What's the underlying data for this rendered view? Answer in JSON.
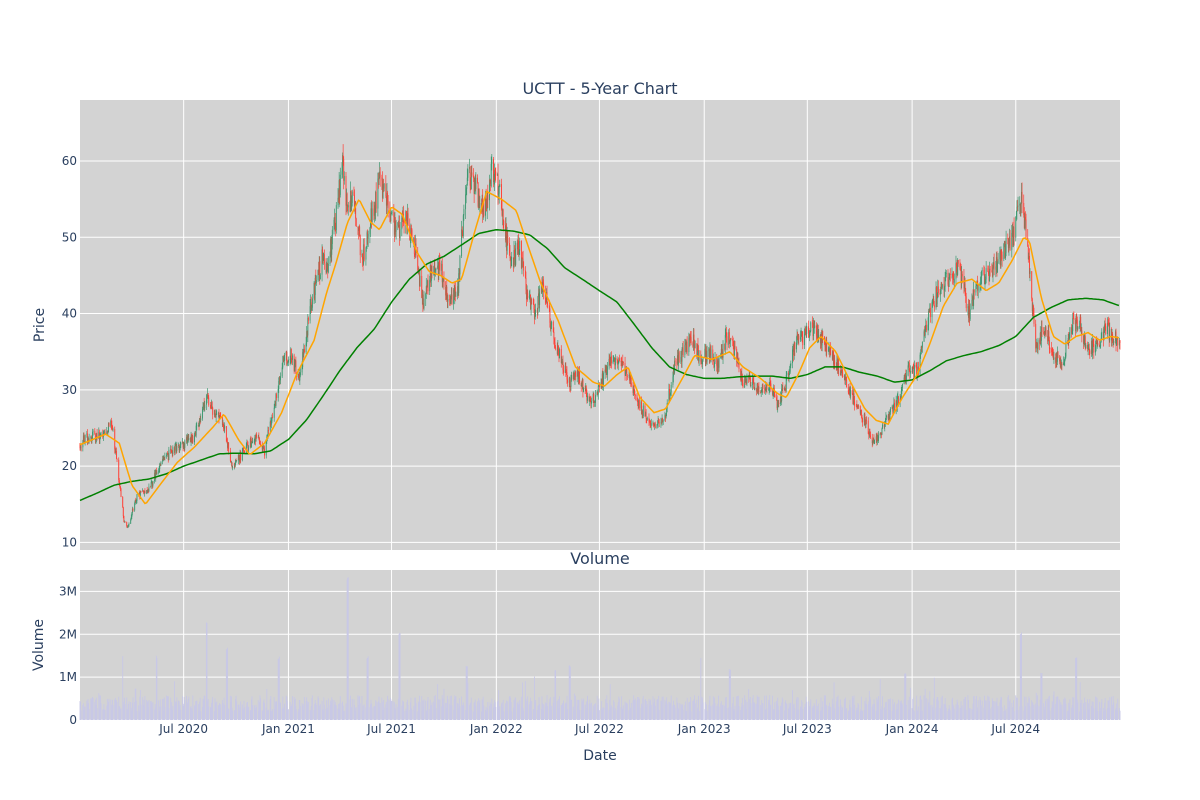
{
  "chart_data": {
    "type": "candlestick",
    "title": "UCTT - 5-Year Chart",
    "volume_title": "Volume",
    "xlabel": "Date",
    "ylabel_price": "Price",
    "ylabel_volume": "Volume",
    "x_range": [
      "2020-01-01",
      "2024-12-31"
    ],
    "x_ticks": [
      {
        "date": "2020-07-01",
        "label": "Jul 2020"
      },
      {
        "date": "2021-01-01",
        "label": "Jan 2021"
      },
      {
        "date": "2021-07-01",
        "label": "Jul 2021"
      },
      {
        "date": "2022-01-01",
        "label": "Jan 2022"
      },
      {
        "date": "2022-07-01",
        "label": "Jul 2022"
      },
      {
        "date": "2023-01-01",
        "label": "Jan 2023"
      },
      {
        "date": "2023-07-01",
        "label": "Jul 2023"
      },
      {
        "date": "2024-01-01",
        "label": "Jan 2024"
      },
      {
        "date": "2024-07-01",
        "label": "Jul 2024"
      }
    ],
    "price_ylim": [
      9,
      68
    ],
    "price_ticks": [
      {
        "v": 10,
        "label": "10"
      },
      {
        "v": 20,
        "label": "20"
      },
      {
        "v": 30,
        "label": "30"
      },
      {
        "v": 40,
        "label": "40"
      },
      {
        "v": 50,
        "label": "50"
      },
      {
        "v": 60,
        "label": "60"
      }
    ],
    "volume_ylim": [
      0,
      3500000
    ],
    "volume_ticks": [
      {
        "v": 0,
        "label": "0"
      },
      {
        "v": 1000000,
        "label": "1M"
      },
      {
        "v": 2000000,
        "label": "2M"
      },
      {
        "v": 3000000,
        "label": "3M"
      }
    ],
    "grid": true,
    "colors": {
      "up": "#3d9970",
      "down": "#ff4136",
      "ma_short": "#ffa500",
      "ma_long": "#008000",
      "volume": "#c8c8e6",
      "plot_bg": "#d3d3d3",
      "text": "#2a3f5f"
    },
    "close_path": [
      [
        "2020-01-01",
        23
      ],
      [
        "2020-01-20",
        24
      ],
      [
        "2020-02-10",
        24
      ],
      [
        "2020-02-25",
        26
      ],
      [
        "2020-03-05",
        21
      ],
      [
        "2020-03-18",
        13
      ],
      [
        "2020-03-25",
        12
      ],
      [
        "2020-04-10",
        16
      ],
      [
        "2020-05-01",
        17
      ],
      [
        "2020-05-20",
        20
      ],
      [
        "2020-06-10",
        22
      ],
      [
        "2020-07-01",
        23
      ],
      [
        "2020-07-20",
        24
      ],
      [
        "2020-08-10",
        29
      ],
      [
        "2020-08-25",
        27
      ],
      [
        "2020-09-10",
        25
      ],
      [
        "2020-09-25",
        20
      ],
      [
        "2020-10-15",
        22
      ],
      [
        "2020-11-05",
        24
      ],
      [
        "2020-11-20",
        22
      ],
      [
        "2020-12-05",
        27
      ],
      [
        "2020-12-20",
        33
      ],
      [
        "2021-01-05",
        35
      ],
      [
        "2021-01-20",
        31
      ],
      [
        "2021-02-05",
        39
      ],
      [
        "2021-02-15",
        43
      ],
      [
        "2021-03-01",
        47
      ],
      [
        "2021-03-10",
        46
      ],
      [
        "2021-03-25",
        52
      ],
      [
        "2021-04-05",
        60
      ],
      [
        "2021-04-15",
        54
      ],
      [
        "2021-04-25",
        56
      ],
      [
        "2021-05-10",
        47
      ],
      [
        "2021-05-25",
        52
      ],
      [
        "2021-06-10",
        57
      ],
      [
        "2021-06-25",
        55
      ],
      [
        "2021-07-10",
        50
      ],
      [
        "2021-07-25",
        53
      ],
      [
        "2021-08-10",
        49
      ],
      [
        "2021-08-25",
        41
      ],
      [
        "2021-09-10",
        46
      ],
      [
        "2021-09-25",
        46
      ],
      [
        "2021-10-10",
        42
      ],
      [
        "2021-10-25",
        43
      ],
      [
        "2021-11-10",
        58
      ],
      [
        "2021-11-25",
        57
      ],
      [
        "2021-12-10",
        53
      ],
      [
        "2021-12-25",
        59
      ],
      [
        "2022-01-10",
        55
      ],
      [
        "2022-01-25",
        46
      ],
      [
        "2022-02-10",
        49
      ],
      [
        "2022-02-25",
        42
      ],
      [
        "2022-03-10",
        40
      ],
      [
        "2022-03-25",
        44
      ],
      [
        "2022-04-10",
        37
      ],
      [
        "2022-04-25",
        34
      ],
      [
        "2022-05-10",
        31
      ],
      [
        "2022-05-25",
        32
      ],
      [
        "2022-06-10",
        29
      ],
      [
        "2022-06-25",
        29
      ],
      [
        "2022-07-10",
        32
      ],
      [
        "2022-07-25",
        34
      ],
      [
        "2022-08-10",
        33
      ],
      [
        "2022-08-25",
        31
      ],
      [
        "2022-09-10",
        28
      ],
      [
        "2022-09-25",
        26
      ],
      [
        "2022-10-10",
        25
      ],
      [
        "2022-10-25",
        27
      ],
      [
        "2022-11-10",
        33
      ],
      [
        "2022-11-25",
        35
      ],
      [
        "2022-12-10",
        37
      ],
      [
        "2022-12-25",
        34
      ],
      [
        "2023-01-10",
        35
      ],
      [
        "2023-01-25",
        33
      ],
      [
        "2023-02-10",
        37
      ],
      [
        "2023-02-25",
        35
      ],
      [
        "2023-03-10",
        31
      ],
      [
        "2023-03-25",
        31
      ],
      [
        "2023-04-10",
        30
      ],
      [
        "2023-04-25",
        31
      ],
      [
        "2023-05-10",
        28
      ],
      [
        "2023-05-25",
        31
      ],
      [
        "2023-06-10",
        36
      ],
      [
        "2023-06-25",
        37
      ],
      [
        "2023-07-10",
        38
      ],
      [
        "2023-07-25",
        37
      ],
      [
        "2023-08-10",
        35
      ],
      [
        "2023-08-25",
        33
      ],
      [
        "2023-09-10",
        30
      ],
      [
        "2023-09-25",
        28
      ],
      [
        "2023-10-10",
        26
      ],
      [
        "2023-10-25",
        23
      ],
      [
        "2023-11-10",
        25
      ],
      [
        "2023-11-25",
        27
      ],
      [
        "2023-12-10",
        29
      ],
      [
        "2023-12-25",
        33
      ],
      [
        "2024-01-10",
        32
      ],
      [
        "2024-01-25",
        38
      ],
      [
        "2024-02-10",
        42
      ],
      [
        "2024-02-25",
        44
      ],
      [
        "2024-03-10",
        45
      ],
      [
        "2024-03-25",
        46
      ],
      [
        "2024-04-10",
        40
      ],
      [
        "2024-04-25",
        44
      ],
      [
        "2024-05-10",
        45
      ],
      [
        "2024-05-25",
        46
      ],
      [
        "2024-06-10",
        48
      ],
      [
        "2024-06-25",
        50
      ],
      [
        "2024-07-10",
        55
      ],
      [
        "2024-07-20",
        50
      ],
      [
        "2024-08-05",
        36
      ],
      [
        "2024-08-20",
        38
      ],
      [
        "2024-09-05",
        35
      ],
      [
        "2024-09-20",
        33
      ],
      [
        "2024-10-05",
        38
      ],
      [
        "2024-10-20",
        39
      ],
      [
        "2024-11-05",
        35
      ],
      [
        "2024-11-20",
        36
      ],
      [
        "2024-12-05",
        38
      ],
      [
        "2024-12-20",
        37
      ],
      [
        "2024-12-31",
        36
      ]
    ],
    "ma_short_path": [
      [
        "2020-01-01",
        22.8
      ],
      [
        "2020-02-15",
        24.2
      ],
      [
        "2020-03-10",
        23.0
      ],
      [
        "2020-04-01",
        17.5
      ],
      [
        "2020-04-25",
        15.0
      ],
      [
        "2020-05-20",
        17.5
      ],
      [
        "2020-06-20",
        20.5
      ],
      [
        "2020-07-20",
        22.5
      ],
      [
        "2020-08-20",
        25.0
      ],
      [
        "2020-09-10",
        26.8
      ],
      [
        "2020-10-05",
        23.5
      ],
      [
        "2020-10-25",
        21.5
      ],
      [
        "2020-11-20",
        23.0
      ],
      [
        "2020-12-20",
        27.0
      ],
      [
        "2021-01-15",
        32.0
      ],
      [
        "2021-02-15",
        36.5
      ],
      [
        "2021-03-10",
        43.0
      ],
      [
        "2021-03-25",
        46.5
      ],
      [
        "2021-04-15",
        52.0
      ],
      [
        "2021-05-05",
        55.0
      ],
      [
        "2021-05-25",
        52.0
      ],
      [
        "2021-06-10",
        51.0
      ],
      [
        "2021-07-01",
        54.0
      ],
      [
        "2021-07-20",
        53.0
      ],
      [
        "2021-08-15",
        48.0
      ],
      [
        "2021-09-05",
        45.5
      ],
      [
        "2021-09-25",
        45.0
      ],
      [
        "2021-10-15",
        44.0
      ],
      [
        "2021-11-01",
        44.5
      ],
      [
        "2021-11-25",
        51.0
      ],
      [
        "2021-12-15",
        56.0
      ],
      [
        "2022-01-10",
        55.0
      ],
      [
        "2022-02-05",
        53.5
      ],
      [
        "2022-02-25",
        49.0
      ],
      [
        "2022-03-20",
        44.0
      ],
      [
        "2022-04-20",
        39.0
      ],
      [
        "2022-05-20",
        33.0
      ],
      [
        "2022-06-20",
        31.0
      ],
      [
        "2022-07-10",
        30.5
      ],
      [
        "2022-08-01",
        32.0
      ],
      [
        "2022-08-20",
        33.0
      ],
      [
        "2022-09-10",
        29.0
      ],
      [
        "2022-10-05",
        27.0
      ],
      [
        "2022-10-25",
        27.5
      ],
      [
        "2022-11-20",
        31.0
      ],
      [
        "2022-12-15",
        34.5
      ],
      [
        "2023-01-15",
        34.0
      ],
      [
        "2023-02-15",
        35.0
      ],
      [
        "2023-03-10",
        33.0
      ],
      [
        "2023-04-10",
        31.5
      ],
      [
        "2023-05-10",
        29.5
      ],
      [
        "2023-05-25",
        29.0
      ],
      [
        "2023-06-15",
        32.0
      ],
      [
        "2023-07-05",
        35.5
      ],
      [
        "2023-07-25",
        37.0
      ],
      [
        "2023-08-20",
        35.0
      ],
      [
        "2023-09-15",
        31.0
      ],
      [
        "2023-10-10",
        27.5
      ],
      [
        "2023-10-30",
        26.0
      ],
      [
        "2023-11-20",
        25.5
      ],
      [
        "2023-12-15",
        29.0
      ],
      [
        "2024-01-10",
        32.0
      ],
      [
        "2024-02-01",
        36.0
      ],
      [
        "2024-02-25",
        41.0
      ],
      [
        "2024-03-20",
        44.0
      ],
      [
        "2024-04-15",
        44.5
      ],
      [
        "2024-05-10",
        43.0
      ],
      [
        "2024-06-01",
        44.0
      ],
      [
        "2024-06-25",
        47.0
      ],
      [
        "2024-07-15",
        50.0
      ],
      [
        "2024-07-25",
        49.5
      ],
      [
        "2024-08-15",
        42.0
      ],
      [
        "2024-09-05",
        37.0
      ],
      [
        "2024-09-25",
        36.0
      ],
      [
        "2024-10-15",
        37.0
      ],
      [
        "2024-11-05",
        37.5
      ],
      [
        "2024-11-25",
        36.5
      ],
      [
        "2024-12-15",
        37.0
      ],
      [
        "2024-12-31",
        36.8
      ]
    ],
    "ma_long_path": [
      [
        "2020-01-01",
        15.5
      ],
      [
        "2020-02-01",
        16.5
      ],
      [
        "2020-03-01",
        17.5
      ],
      [
        "2020-04-01",
        18.0
      ],
      [
        "2020-05-01",
        18.3
      ],
      [
        "2020-06-01",
        19.0
      ],
      [
        "2020-07-01",
        20.0
      ],
      [
        "2020-08-01",
        20.8
      ],
      [
        "2020-09-01",
        21.6
      ],
      [
        "2020-10-01",
        21.7
      ],
      [
        "2020-11-01",
        21.6
      ],
      [
        "2020-12-01",
        22.0
      ],
      [
        "2021-01-01",
        23.5
      ],
      [
        "2021-02-01",
        26.0
      ],
      [
        "2021-03-01",
        29.0
      ],
      [
        "2021-04-01",
        32.5
      ],
      [
        "2021-05-01",
        35.5
      ],
      [
        "2021-06-01",
        38.0
      ],
      [
        "2021-07-01",
        41.5
      ],
      [
        "2021-08-01",
        44.5
      ],
      [
        "2021-09-01",
        46.5
      ],
      [
        "2021-10-01",
        47.5
      ],
      [
        "2021-11-01",
        49.0
      ],
      [
        "2021-12-01",
        50.5
      ],
      [
        "2022-01-01",
        51.0
      ],
      [
        "2022-02-01",
        50.8
      ],
      [
        "2022-03-01",
        50.3
      ],
      [
        "2022-04-01",
        48.5
      ],
      [
        "2022-05-01",
        46.0
      ],
      [
        "2022-06-01",
        44.5
      ],
      [
        "2022-07-01",
        43.0
      ],
      [
        "2022-08-01",
        41.5
      ],
      [
        "2022-09-01",
        38.5
      ],
      [
        "2022-10-01",
        35.5
      ],
      [
        "2022-11-01",
        33.0
      ],
      [
        "2022-12-01",
        32.0
      ],
      [
        "2023-01-01",
        31.5
      ],
      [
        "2023-02-01",
        31.5
      ],
      [
        "2023-03-01",
        31.7
      ],
      [
        "2023-04-01",
        31.8
      ],
      [
        "2023-05-01",
        31.8
      ],
      [
        "2023-06-01",
        31.5
      ],
      [
        "2023-07-01",
        32.0
      ],
      [
        "2023-08-01",
        33.0
      ],
      [
        "2023-09-01",
        33.0
      ],
      [
        "2023-10-01",
        32.3
      ],
      [
        "2023-11-01",
        31.8
      ],
      [
        "2023-12-01",
        31.0
      ],
      [
        "2024-01-01",
        31.3
      ],
      [
        "2024-02-01",
        32.5
      ],
      [
        "2024-03-01",
        33.8
      ],
      [
        "2024-04-01",
        34.5
      ],
      [
        "2024-05-01",
        35.0
      ],
      [
        "2024-06-01",
        35.8
      ],
      [
        "2024-07-01",
        37.0
      ],
      [
        "2024-08-01",
        39.5
      ],
      [
        "2024-09-01",
        40.8
      ],
      [
        "2024-10-01",
        41.8
      ],
      [
        "2024-11-01",
        42.0
      ],
      [
        "2024-12-01",
        41.8
      ],
      [
        "2024-12-31",
        41.0
      ]
    ],
    "volume_spikes": [
      [
        "2020-03-15",
        1500000
      ],
      [
        "2020-05-15",
        1500000
      ],
      [
        "2020-08-10",
        2300000
      ],
      [
        "2020-09-15",
        1700000
      ],
      [
        "2020-12-15",
        1500000
      ],
      [
        "2021-04-15",
        3400000
      ],
      [
        "2021-05-20",
        1500000
      ],
      [
        "2021-07-15",
        2100000
      ],
      [
        "2021-11-10",
        1300000
      ],
      [
        "2022-04-15",
        1200000
      ],
      [
        "2022-05-10",
        1300000
      ],
      [
        "2022-12-25",
        1450000
      ],
      [
        "2023-02-15",
        1200000
      ],
      [
        "2023-11-05",
        1000000
      ],
      [
        "2023-12-20",
        1100000
      ],
      [
        "2024-02-10",
        1000000
      ],
      [
        "2024-07-10",
        2100000
      ],
      [
        "2024-08-15",
        1100000
      ],
      [
        "2024-10-15",
        1500000
      ]
    ]
  }
}
